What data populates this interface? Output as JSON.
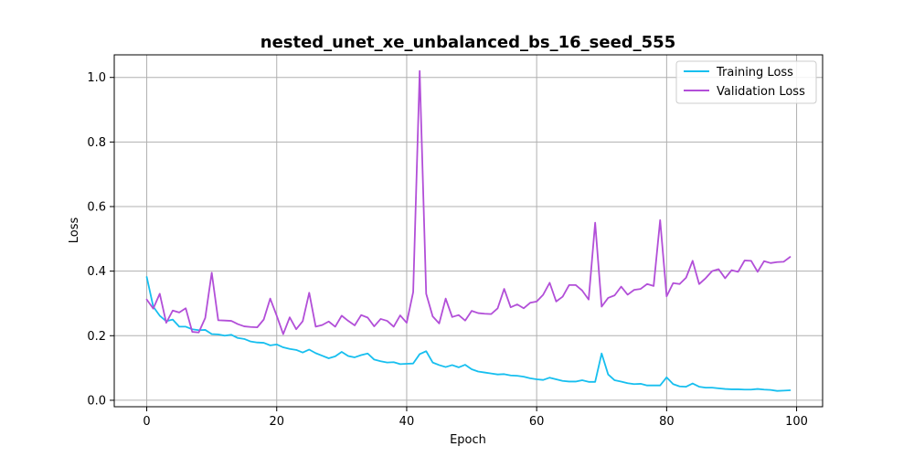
{
  "chart_data": {
    "type": "line",
    "title": "nested_unet_xe_unbalanced_bs_16_seed_555",
    "xlabel": "Epoch",
    "ylabel": "Loss",
    "xlim": [
      -5,
      104
    ],
    "ylim": [
      -0.02,
      1.07
    ],
    "xticks": [
      0,
      20,
      40,
      60,
      80,
      100
    ],
    "yticks": [
      0.0,
      0.2,
      0.4,
      0.6,
      0.8,
      1.0
    ],
    "xtick_labels": [
      "0",
      "20",
      "40",
      "60",
      "80",
      "100"
    ],
    "ytick_labels": [
      "0.0",
      "0.2",
      "0.4",
      "0.6",
      "0.8",
      "1.0"
    ],
    "grid": true,
    "legend_position": "top-right",
    "x": [
      0,
      1,
      2,
      3,
      4,
      5,
      6,
      7,
      8,
      9,
      10,
      11,
      12,
      13,
      14,
      15,
      16,
      17,
      18,
      19,
      20,
      21,
      22,
      23,
      24,
      25,
      26,
      27,
      28,
      29,
      30,
      31,
      32,
      33,
      34,
      35,
      36,
      37,
      38,
      39,
      40,
      41,
      42,
      43,
      44,
      45,
      46,
      47,
      48,
      49,
      50,
      51,
      52,
      53,
      54,
      55,
      56,
      57,
      58,
      59,
      60,
      61,
      62,
      63,
      64,
      65,
      66,
      67,
      68,
      69,
      70,
      71,
      72,
      73,
      74,
      75,
      76,
      77,
      78,
      79,
      80,
      81,
      82,
      83,
      84,
      85,
      86,
      87,
      88,
      89,
      90,
      91,
      92,
      93,
      94,
      95,
      96,
      97,
      98,
      99
    ],
    "series": [
      {
        "name": "Training Loss",
        "color": "#17bfef",
        "values": [
          0.382,
          0.29,
          0.262,
          0.245,
          0.25,
          0.228,
          0.228,
          0.22,
          0.217,
          0.218,
          0.205,
          0.204,
          0.2,
          0.203,
          0.193,
          0.19,
          0.182,
          0.179,
          0.178,
          0.17,
          0.173,
          0.164,
          0.159,
          0.156,
          0.148,
          0.157,
          0.146,
          0.138,
          0.13,
          0.136,
          0.15,
          0.137,
          0.133,
          0.14,
          0.145,
          0.126,
          0.121,
          0.117,
          0.118,
          0.112,
          0.113,
          0.114,
          0.143,
          0.152,
          0.117,
          0.109,
          0.103,
          0.109,
          0.102,
          0.11,
          0.096,
          0.089,
          0.086,
          0.083,
          0.08,
          0.081,
          0.077,
          0.076,
          0.073,
          0.068,
          0.065,
          0.063,
          0.07,
          0.065,
          0.06,
          0.058,
          0.058,
          0.062,
          0.057,
          0.057,
          0.145,
          0.08,
          0.062,
          0.058,
          0.053,
          0.05,
          0.051,
          0.046,
          0.046,
          0.046,
          0.071,
          0.05,
          0.043,
          0.042,
          0.052,
          0.042,
          0.039,
          0.039,
          0.037,
          0.035,
          0.034,
          0.034,
          0.033,
          0.033,
          0.035,
          0.033,
          0.032,
          0.029,
          0.03,
          0.031
        ]
      },
      {
        "name": "Validation Loss",
        "color": "#b24fd8",
        "values": [
          0.312,
          0.284,
          0.33,
          0.24,
          0.278,
          0.272,
          0.285,
          0.212,
          0.21,
          0.255,
          0.395,
          0.248,
          0.247,
          0.246,
          0.236,
          0.229,
          0.227,
          0.226,
          0.25,
          0.315,
          0.262,
          0.205,
          0.257,
          0.22,
          0.245,
          0.333,
          0.228,
          0.233,
          0.244,
          0.228,
          0.262,
          0.246,
          0.232,
          0.264,
          0.256,
          0.229,
          0.252,
          0.246,
          0.228,
          0.263,
          0.24,
          0.335,
          1.02,
          0.33,
          0.26,
          0.238,
          0.315,
          0.258,
          0.264,
          0.247,
          0.277,
          0.27,
          0.268,
          0.267,
          0.285,
          0.345,
          0.288,
          0.297,
          0.285,
          0.302,
          0.306,
          0.327,
          0.364,
          0.306,
          0.321,
          0.357,
          0.357,
          0.34,
          0.312,
          0.55,
          0.29,
          0.317,
          0.325,
          0.352,
          0.327,
          0.342,
          0.345,
          0.36,
          0.354,
          0.558,
          0.322,
          0.363,
          0.36,
          0.38,
          0.432,
          0.36,
          0.378,
          0.4,
          0.406,
          0.378,
          0.403,
          0.398,
          0.433,
          0.432,
          0.398,
          0.431,
          0.425,
          0.428,
          0.429,
          0.444
        ]
      }
    ]
  }
}
